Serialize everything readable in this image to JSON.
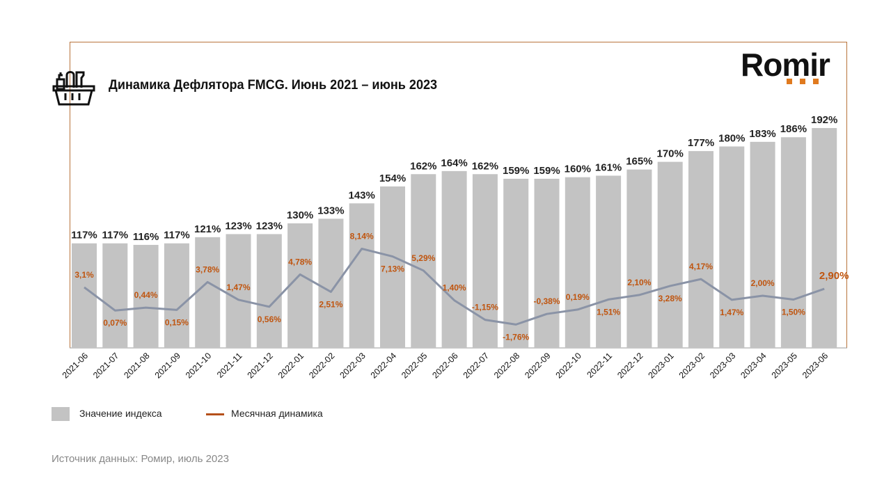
{
  "title": "Динамика Дефлятора  FMCG. Июнь 2021 – июнь 2023",
  "logo": {
    "text": "Romir",
    "accent": "#e07a1f"
  },
  "icon": "grocery-basket-icon",
  "source": "Источник данных: Ромир, июль 2023",
  "chart_data": {
    "type": "bar+line",
    "categories": [
      "2021-06",
      "2021-07",
      "2021-08",
      "2021-09",
      "2021-10",
      "2021-11",
      "2021-12",
      "2022-01",
      "2022-02",
      "2022-03",
      "2022-04",
      "2022-05",
      "2022-06",
      "2022-07",
      "2022-08",
      "2022-09",
      "2022-10",
      "2022-11",
      "2022-12",
      "2023-01",
      "2023-02",
      "2023-03",
      "2023-04",
      "2023-05",
      "2023-06"
    ],
    "series": [
      {
        "name": "Значение индекса",
        "type": "bar",
        "color": "#c3c3c3",
        "values": [
          117,
          117,
          116,
          117,
          121,
          123,
          123,
          130,
          133,
          143,
          154,
          162,
          164,
          162,
          159,
          159,
          160,
          161,
          165,
          170,
          177,
          180,
          183,
          186,
          192
        ],
        "labels": [
          "117%",
          "117%",
          "116%",
          "117%",
          "121%",
          "123%",
          "123%",
          "130%",
          "133%",
          "143%",
          "154%",
          "162%",
          "164%",
          "162%",
          "159%",
          "159%",
          "160%",
          "161%",
          "165%",
          "170%",
          "177%",
          "180%",
          "183%",
          "186%",
          "192%"
        ]
      },
      {
        "name": "Месячная динамика",
        "type": "line",
        "color": "#8a93a6",
        "label_color": "#c0550f",
        "legend_color": "#b5501a",
        "values": [
          3.1,
          0.07,
          0.44,
          0.15,
          3.78,
          1.47,
          0.56,
          4.78,
          2.51,
          8.14,
          7.13,
          5.29,
          1.4,
          -1.15,
          -1.76,
          -0.38,
          0.19,
          1.51,
          2.1,
          3.28,
          4.17,
          1.47,
          2.0,
          1.5,
          2.9
        ],
        "labels": [
          "3,1%",
          "0,07%",
          "0,44%",
          "0,15%",
          "3,78%",
          "1,47%",
          "0,56%",
          "4,78%",
          "2,51%",
          "8,14%",
          "7,13%",
          "5,29%",
          "1,40%",
          "-1,15%",
          "-1,76%",
          "-0,38%",
          "0,19%",
          "1,51%",
          "2,10%",
          "3,28%",
          "4,17%",
          "1,47%",
          "2,00%",
          "1,50%",
          "2,90%"
        ]
      }
    ],
    "grid": false,
    "legend_placement": "bottom-left"
  }
}
